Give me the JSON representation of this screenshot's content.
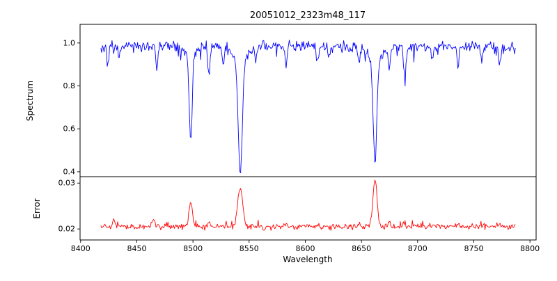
{
  "figure": {
    "background": "#ffffff",
    "frame_color": "#000000",
    "text_color": "#000000"
  },
  "chart_data": {
    "type": "line",
    "title": "20051012_2323m48_117",
    "xlabel": "Wavelength",
    "legend": "none",
    "grid": false,
    "xlim": [
      8399.5,
      8805.5
    ],
    "xticks": [
      8400,
      8450,
      8500,
      8550,
      8600,
      8650,
      8700,
      8750,
      8800
    ],
    "xtick_labels": [
      "8400",
      "8450",
      "8500",
      "8550",
      "8600",
      "8650",
      "8700",
      "8750",
      "8800"
    ],
    "x_start": 8418,
    "x_end": 8787,
    "n_points": 520,
    "noise_seed": 20051012,
    "panels": [
      {
        "name": "spectrum",
        "ylabel": "Spectrum",
        "line_color": "#0000ff",
        "ylim": [
          0.377,
          1.087
        ],
        "yticks": [
          0.4,
          0.6,
          0.8,
          1.0
        ],
        "ytick_labels": [
          "0.4",
          "0.6",
          "0.8",
          "1.0"
        ],
        "continuum": 0.985,
        "noise_sigma": 0.012,
        "down_spike_prob": 0.07,
        "down_spike_max": 0.05,
        "absorption_lines": [
          {
            "center": 8498.0,
            "depth": 0.4,
            "sigma": 1.3
          },
          {
            "center": 8498.0,
            "depth": 0.045,
            "sigma": 5.0
          },
          {
            "center": 8542.1,
            "depth": 0.52,
            "sigma": 1.8
          },
          {
            "center": 8542.1,
            "depth": 0.065,
            "sigma": 7.0
          },
          {
            "center": 8662.1,
            "depth": 0.49,
            "sigma": 1.6
          },
          {
            "center": 8662.1,
            "depth": 0.065,
            "sigma": 6.0
          },
          {
            "center": 8424.0,
            "depth": 0.06,
            "sigma": 0.9
          },
          {
            "center": 8434.0,
            "depth": 0.05,
            "sigma": 0.8
          },
          {
            "center": 8468.0,
            "depth": 0.09,
            "sigma": 1.0
          },
          {
            "center": 8514.2,
            "depth": 0.13,
            "sigma": 1.0
          },
          {
            "center": 8527.0,
            "depth": 0.07,
            "sigma": 0.9
          },
          {
            "center": 8556.0,
            "depth": 0.06,
            "sigma": 0.9
          },
          {
            "center": 8583.0,
            "depth": 0.08,
            "sigma": 0.9
          },
          {
            "center": 8611.0,
            "depth": 0.07,
            "sigma": 0.9
          },
          {
            "center": 8621.0,
            "depth": 0.06,
            "sigma": 0.9
          },
          {
            "center": 8648.0,
            "depth": 0.07,
            "sigma": 0.9
          },
          {
            "center": 8674.7,
            "depth": 0.11,
            "sigma": 1.0
          },
          {
            "center": 8688.6,
            "depth": 0.14,
            "sigma": 1.1
          },
          {
            "center": 8713.0,
            "depth": 0.07,
            "sigma": 0.9
          },
          {
            "center": 8736.0,
            "depth": 0.08,
            "sigma": 0.9
          },
          {
            "center": 8757.0,
            "depth": 0.07,
            "sigma": 0.9
          },
          {
            "center": 8773.0,
            "depth": 0.09,
            "sigma": 0.9
          }
        ]
      },
      {
        "name": "error",
        "ylabel": "Error",
        "line_color": "#ff0000",
        "ylim": [
          0.0176,
          0.0314
        ],
        "yticks": [
          0.02,
          0.03
        ],
        "ytick_labels": [
          "0.02",
          "0.03"
        ],
        "baseline": 0.0205,
        "noise_sigma": 0.00032,
        "up_spike_prob": 0.06,
        "up_spike_max": 0.0012,
        "emission_peaks": [
          {
            "center": 8498.0,
            "height": 0.0055,
            "sigma": 1.5
          },
          {
            "center": 8542.1,
            "height": 0.0085,
            "sigma": 2.2
          },
          {
            "center": 8662.1,
            "height": 0.0103,
            "sigma": 1.8
          },
          {
            "center": 8430.0,
            "height": 0.0012,
            "sigma": 1.2
          },
          {
            "center": 8465.0,
            "height": 0.001,
            "sigma": 1.0
          },
          {
            "center": 8514.2,
            "height": 0.001,
            "sigma": 1.0
          },
          {
            "center": 8583.0,
            "height": 0.0007,
            "sigma": 1.0
          },
          {
            "center": 8611.0,
            "height": 0.0006,
            "sigma": 1.0
          },
          {
            "center": 8648.0,
            "height": 0.0006,
            "sigma": 1.0
          },
          {
            "center": 8674.7,
            "height": 0.0008,
            "sigma": 1.0
          },
          {
            "center": 8688.6,
            "height": 0.001,
            "sigma": 1.0
          },
          {
            "center": 8713.0,
            "height": 0.0006,
            "sigma": 1.0
          },
          {
            "center": 8736.0,
            "height": 0.0008,
            "sigma": 1.0
          },
          {
            "center": 8757.0,
            "height": 0.0007,
            "sigma": 1.0
          },
          {
            "center": 8773.0,
            "height": 0.0009,
            "sigma": 1.0
          }
        ]
      }
    ]
  }
}
